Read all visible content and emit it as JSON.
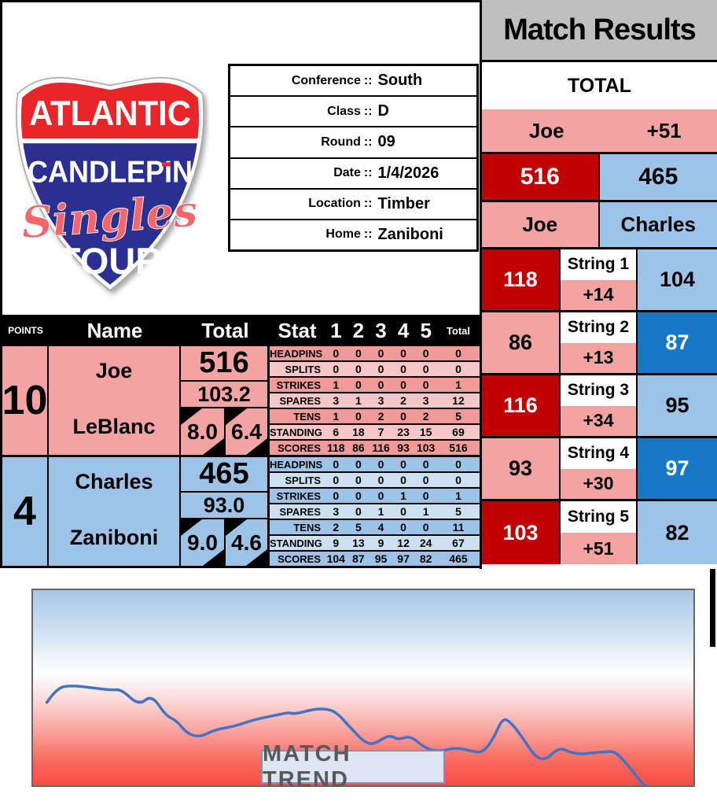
{
  "header": {
    "title": "Match Results"
  },
  "logo": {
    "line1": "ATLANTIC",
    "line2": "CANDLEPIN",
    "line3": "Singles",
    "line4": "TOUR",
    "red": "#E8262A",
    "blue": "#2B2F8F"
  },
  "info": {
    "rows": [
      {
        "label": "Conference",
        "separator": "::",
        "value": "South"
      },
      {
        "label": "Class",
        "separator": "::",
        "value": "D"
      },
      {
        "label": "Round",
        "separator": "::",
        "value": "09"
      },
      {
        "label": "Date",
        "separator": "::",
        "value": "1/4/2026"
      },
      {
        "label": "Location",
        "separator": "::",
        "value": "Timber"
      },
      {
        "label": "Home",
        "separator": "::",
        "value": "Zaniboni"
      }
    ]
  },
  "total_panel": {
    "title": "TOTAL",
    "leader_name": "Joe",
    "leader_margin": "+51",
    "player1_total": "516",
    "player2_total": "465",
    "player1_name": "Joe",
    "player2_name": "Charles"
  },
  "strings": [
    {
      "label": "String 1",
      "p1": "118",
      "diff": "+14",
      "p2": "104",
      "p1_win": true,
      "p2_win": false
    },
    {
      "label": "String 2",
      "p1": "86",
      "diff": "+13",
      "p2": "87",
      "p1_win": false,
      "p2_win": true
    },
    {
      "label": "String 3",
      "p1": "116",
      "diff": "+34",
      "p2": "95",
      "p1_win": true,
      "p2_win": false
    },
    {
      "label": "String 4",
      "p1": "93",
      "diff": "+30",
      "p2": "97",
      "p1_win": false,
      "p2_win": true
    },
    {
      "label": "String 5",
      "p1": "103",
      "diff": "+51",
      "p2": "82",
      "p1_win": true,
      "p2_win": false
    }
  ],
  "score_table": {
    "headers": {
      "points": "POINTS",
      "name": "Name",
      "total": "Total",
      "stat": "Stat",
      "games": [
        "1",
        "2",
        "3",
        "4",
        "5"
      ],
      "total_small": "Total"
    },
    "players": [
      {
        "theme": "red",
        "points": "10",
        "first_name": "Joe",
        "last_name": "LeBlanc",
        "total": "516",
        "average": "103.2",
        "avg_left": "8.0",
        "avg_right": "6.4",
        "stats": [
          {
            "label": "HEADPINS",
            "values": [
              "0",
              "0",
              "0",
              "0",
              "0"
            ],
            "total": "0"
          },
          {
            "label": "SPLITS",
            "values": [
              "0",
              "0",
              "0",
              "0",
              "0"
            ],
            "total": "0"
          },
          {
            "label": "STRIKES",
            "values": [
              "1",
              "0",
              "0",
              "0",
              "0"
            ],
            "total": "1"
          },
          {
            "label": "SPARES",
            "values": [
              "3",
              "1",
              "3",
              "2",
              "3"
            ],
            "total": "12"
          },
          {
            "label": "TENS",
            "values": [
              "1",
              "0",
              "2",
              "0",
              "2"
            ],
            "total": "5"
          },
          {
            "label": "STANDING",
            "values": [
              "6",
              "18",
              "7",
              "23",
              "15"
            ],
            "total": "69"
          },
          {
            "label": "SCORES",
            "values": [
              "118",
              "86",
              "116",
              "93",
              "103"
            ],
            "total": "516"
          }
        ]
      },
      {
        "theme": "blue",
        "points": "4",
        "first_name": "Charles",
        "last_name": "Zaniboni",
        "total": "465",
        "average": "93.0",
        "avg_left": "9.0",
        "avg_right": "4.6",
        "stats": [
          {
            "label": "HEADPINS",
            "values": [
              "0",
              "0",
              "0",
              "0",
              "0"
            ],
            "total": "0"
          },
          {
            "label": "SPLITS",
            "values": [
              "0",
              "0",
              "0",
              "0",
              "0"
            ],
            "total": "0"
          },
          {
            "label": "STRIKES",
            "values": [
              "0",
              "0",
              "0",
              "1",
              "0"
            ],
            "total": "1"
          },
          {
            "label": "SPARES",
            "values": [
              "3",
              "0",
              "1",
              "0",
              "1"
            ],
            "total": "5"
          },
          {
            "label": "TENS",
            "values": [
              "2",
              "5",
              "4",
              "0",
              "0"
            ],
            "total": "11"
          },
          {
            "label": "STANDING",
            "values": [
              "9",
              "13",
              "9",
              "12",
              "24"
            ],
            "total": "67"
          },
          {
            "label": "SCORES",
            "values": [
              "104",
              "87",
              "95",
              "97",
              "82"
            ],
            "total": "465"
          }
        ]
      }
    ]
  },
  "trend": {
    "label": "MATCH TREND"
  },
  "colors": {
    "dark_red": "#C00000",
    "pink": "#F4A3A3",
    "light_blue": "#9DC3E6",
    "strong_blue": "#1878C8",
    "header_gray": "#BFBFBF",
    "trend_line": "#4472C4"
  },
  "chart_data": {
    "type": "line",
    "title": "MATCH TREND",
    "description": "Cumulative match trend line across five strings (Joe red side, bottom; Charles blue side, top); no axes or tick labels shown",
    "legend": "none",
    "grid": false,
    "line_color": "#4472C4",
    "x_unit": "match progress (percent of panel width)",
    "y_unit": "vertical position (percent of panel height from top)",
    "points": [
      [
        2.1,
        57.5
      ],
      [
        3.6,
        50.0
      ],
      [
        5.9,
        48.8
      ],
      [
        8.9,
        50.0
      ],
      [
        11.8,
        51.2
      ],
      [
        13.4,
        50.8
      ],
      [
        16.0,
        59.1
      ],
      [
        18.0,
        53.6
      ],
      [
        20.1,
        64.3
      ],
      [
        21.7,
        66.7
      ],
      [
        23.3,
        73.4
      ],
      [
        25.2,
        75.4
      ],
      [
        27.6,
        71.4
      ],
      [
        30.5,
        69.8
      ],
      [
        33.5,
        66.3
      ],
      [
        37.6,
        63.5
      ],
      [
        38.7,
        62.7
      ],
      [
        39.7,
        63.5
      ],
      [
        42.3,
        61.1
      ],
      [
        44.4,
        60.7
      ],
      [
        46.0,
        62.7
      ],
      [
        48.2,
        71.0
      ],
      [
        50.9,
        80.2
      ],
      [
        53.3,
        75.4
      ],
      [
        54.2,
        74.6
      ],
      [
        55.3,
        76.6
      ],
      [
        57.2,
        74.6
      ],
      [
        59.2,
        80.6
      ],
      [
        61.3,
        82.9
      ],
      [
        64.0,
        80.6
      ],
      [
        66.4,
        82.5
      ],
      [
        68.1,
        83.3
      ],
      [
        69.7,
        76.2
      ],
      [
        71.1,
        65.5
      ],
      [
        72.3,
        67.5
      ],
      [
        74.1,
        75.4
      ],
      [
        76.1,
        85.7
      ],
      [
        77.6,
        86.9
      ],
      [
        78.9,
        82.9
      ],
      [
        80.0,
        81.0
      ],
      [
        81.2,
        82.9
      ],
      [
        82.9,
        84.1
      ],
      [
        84.7,
        83.3
      ],
      [
        86.5,
        82.9
      ],
      [
        88.0,
        82.5
      ],
      [
        89.5,
        87.3
      ],
      [
        90.9,
        93.3
      ],
      [
        92.2,
        98.8
      ],
      [
        92.7,
        100
      ]
    ]
  }
}
